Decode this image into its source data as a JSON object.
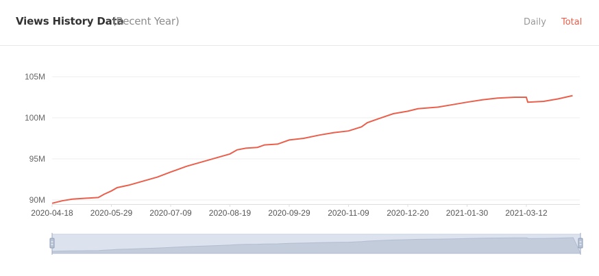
{
  "header": {
    "title": "Views History Data",
    "subtitle": "(Recent Year)",
    "tabs": [
      {
        "label": "Daily",
        "active": false
      },
      {
        "label": "Total",
        "active": true
      }
    ]
  },
  "colors": {
    "line": "#e95f4b",
    "active_tab": "#e95f4b",
    "inactive_tab": "#999999",
    "grid": "#eeeeee",
    "slider_fill": "#dde3ee"
  },
  "chart_data": {
    "type": "line",
    "title": "",
    "xlabel": "",
    "ylabel": "",
    "ylim": [
      89.5,
      106
    ],
    "xlim": [
      "2020-04-18",
      "2021-04-18"
    ],
    "yticks": [
      90,
      95,
      100,
      105
    ],
    "ytick_labels": [
      "90M",
      "95M",
      "100M",
      "105M"
    ],
    "xtick_labels": [
      "2020-04-18",
      "2020-05-29",
      "2020-07-09",
      "2020-08-19",
      "2020-09-29",
      "2020-11-09",
      "2020-12-20",
      "2021-01-30",
      "2021-03-12"
    ],
    "grid": true,
    "series": [
      {
        "name": "",
        "points": [
          [
            "2020-04-18",
            89.6
          ],
          [
            "2020-04-25",
            89.9
          ],
          [
            "2020-05-02",
            90.1
          ],
          [
            "2020-05-10",
            90.2
          ],
          [
            "2020-05-20",
            90.3
          ],
          [
            "2020-05-24",
            90.7
          ],
          [
            "2020-05-29",
            91.1
          ],
          [
            "2020-06-02",
            91.5
          ],
          [
            "2020-06-10",
            91.8
          ],
          [
            "2020-06-20",
            92.3
          ],
          [
            "2020-06-30",
            92.8
          ],
          [
            "2020-07-09",
            93.4
          ],
          [
            "2020-07-20",
            94.1
          ],
          [
            "2020-07-30",
            94.6
          ],
          [
            "2020-08-09",
            95.1
          ],
          [
            "2020-08-19",
            95.6
          ],
          [
            "2020-08-24",
            96.1
          ],
          [
            "2020-08-30",
            96.3
          ],
          [
            "2020-09-07",
            96.4
          ],
          [
            "2020-09-12",
            96.7
          ],
          [
            "2020-09-21",
            96.8
          ],
          [
            "2020-09-29",
            97.3
          ],
          [
            "2020-10-09",
            97.5
          ],
          [
            "2020-10-20",
            97.9
          ],
          [
            "2020-10-30",
            98.2
          ],
          [
            "2020-11-09",
            98.4
          ],
          [
            "2020-11-18",
            98.9
          ],
          [
            "2020-11-22",
            99.4
          ],
          [
            "2020-11-30",
            99.9
          ],
          [
            "2020-12-10",
            100.5
          ],
          [
            "2020-12-20",
            100.8
          ],
          [
            "2020-12-27",
            101.1
          ],
          [
            "2021-01-10",
            101.3
          ],
          [
            "2021-01-20",
            101.6
          ],
          [
            "2021-01-30",
            101.9
          ],
          [
            "2021-02-10",
            102.2
          ],
          [
            "2021-02-20",
            102.4
          ],
          [
            "2021-03-04",
            102.5
          ],
          [
            "2021-03-12",
            102.5
          ],
          [
            "2021-03-13",
            101.9
          ],
          [
            "2021-03-24",
            102.0
          ],
          [
            "2021-04-03",
            102.3
          ],
          [
            "2021-04-13",
            102.7
          ]
        ]
      }
    ]
  }
}
